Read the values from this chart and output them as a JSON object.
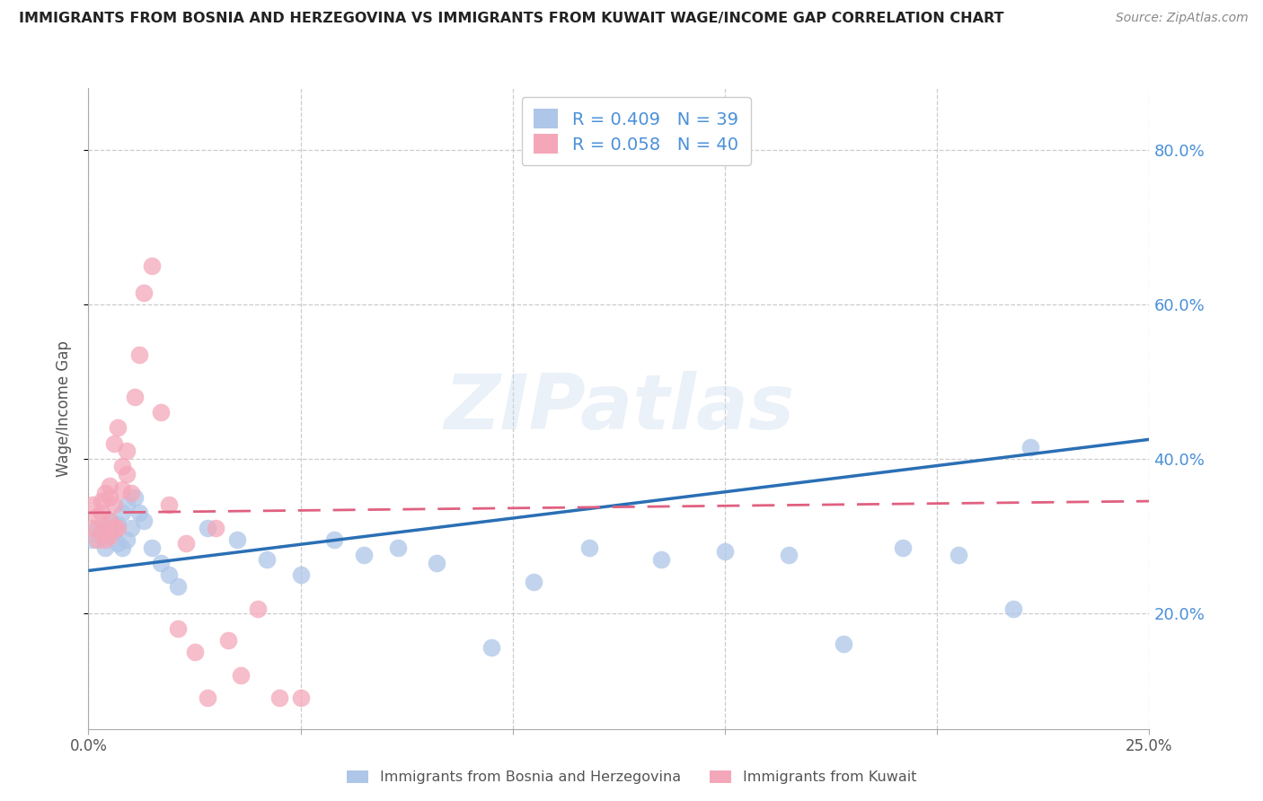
{
  "title": "IMMIGRANTS FROM BOSNIA AND HERZEGOVINA VS IMMIGRANTS FROM KUWAIT WAGE/INCOME GAP CORRELATION CHART",
  "source": "Source: ZipAtlas.com",
  "ylabel": "Wage/Income Gap",
  "xlim": [
    0.0,
    0.25
  ],
  "ylim": [
    0.05,
    0.88
  ],
  "yticks": [
    0.2,
    0.4,
    0.6,
    0.8
  ],
  "ytick_labels": [
    "20.0%",
    "40.0%",
    "60.0%",
    "80.0%"
  ],
  "xticks": [
    0.0,
    0.05,
    0.1,
    0.15,
    0.2,
    0.25
  ],
  "xtick_labels": [
    "0.0%",
    "",
    "",
    "",
    "",
    "25.0%"
  ],
  "watermark": "ZIPatlas",
  "bosnia_x": [
    0.001,
    0.002,
    0.003,
    0.004,
    0.005,
    0.006,
    0.007,
    0.007,
    0.008,
    0.008,
    0.009,
    0.009,
    0.01,
    0.011,
    0.012,
    0.013,
    0.015,
    0.017,
    0.019,
    0.021,
    0.028,
    0.035,
    0.042,
    0.05,
    0.058,
    0.065,
    0.073,
    0.082,
    0.095,
    0.105,
    0.118,
    0.135,
    0.15,
    0.165,
    0.178,
    0.192,
    0.205,
    0.218,
    0.222
  ],
  "bosnia_y": [
    0.295,
    0.31,
    0.3,
    0.285,
    0.32,
    0.305,
    0.315,
    0.29,
    0.33,
    0.285,
    0.34,
    0.295,
    0.31,
    0.35,
    0.33,
    0.32,
    0.285,
    0.265,
    0.25,
    0.235,
    0.31,
    0.295,
    0.27,
    0.25,
    0.295,
    0.275,
    0.285,
    0.265,
    0.155,
    0.24,
    0.285,
    0.27,
    0.28,
    0.275,
    0.16,
    0.285,
    0.275,
    0.205,
    0.415
  ],
  "kuwait_x": [
    0.001,
    0.001,
    0.002,
    0.002,
    0.003,
    0.003,
    0.003,
    0.004,
    0.004,
    0.004,
    0.005,
    0.005,
    0.005,
    0.005,
    0.006,
    0.006,
    0.006,
    0.007,
    0.007,
    0.008,
    0.008,
    0.009,
    0.009,
    0.01,
    0.011,
    0.012,
    0.013,
    0.015,
    0.017,
    0.019,
    0.021,
    0.023,
    0.025,
    0.028,
    0.03,
    0.033,
    0.036,
    0.04,
    0.045,
    0.05
  ],
  "kuwait_y": [
    0.31,
    0.34,
    0.295,
    0.325,
    0.305,
    0.33,
    0.345,
    0.295,
    0.31,
    0.355,
    0.3,
    0.32,
    0.35,
    0.365,
    0.31,
    0.34,
    0.42,
    0.31,
    0.44,
    0.36,
    0.39,
    0.38,
    0.41,
    0.355,
    0.48,
    0.535,
    0.615,
    0.65,
    0.46,
    0.34,
    0.18,
    0.29,
    0.15,
    0.09,
    0.31,
    0.165,
    0.12,
    0.205,
    0.09,
    0.09
  ],
  "bosnia_color": "#aec6e8",
  "kuwait_color": "#f4a7b9",
  "bosnia_line_color": "#2a6fb5",
  "kuwait_line_color": "#e06080",
  "background_color": "#ffffff",
  "grid_color": "#cccccc",
  "title_color": "#222222",
  "axis_label_color": "#555555",
  "right_axis_color": "#4a90d9",
  "R_bosnia": 0.409,
  "N_bosnia": 39,
  "R_kuwait": 0.058,
  "N_kuwait": 40,
  "bosnia_line_y0": 0.255,
  "bosnia_line_y1": 0.425,
  "kuwait_line_y0": 0.33,
  "kuwait_line_y1": 0.345
}
